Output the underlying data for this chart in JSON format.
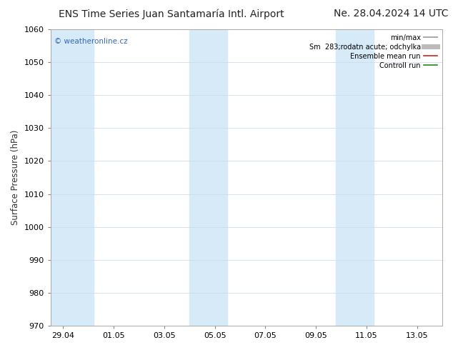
{
  "title_left": "ENS Time Series Juan Santamaría Intl. Airport",
  "title_right": "Ne. 28.04.2024 14 UTC",
  "ylabel": "Surface Pressure (hPa)",
  "ylim": [
    970,
    1060
  ],
  "yticks": [
    970,
    980,
    990,
    1000,
    1010,
    1020,
    1030,
    1040,
    1050,
    1060
  ],
  "xtick_labels": [
    "29.04",
    "01.05",
    "03.05",
    "05.05",
    "07.05",
    "09.05",
    "11.05",
    "13.05"
  ],
  "xtick_positions": [
    0,
    2,
    4,
    6,
    8,
    10,
    12,
    14
  ],
  "xlim": [
    -0.5,
    15.0
  ],
  "shaded_bands": [
    {
      "x_start": -0.5,
      "x_end": 1.2
    },
    {
      "x_start": 5.0,
      "x_end": 6.5
    },
    {
      "x_start": 10.8,
      "x_end": 12.3
    }
  ],
  "band_color": "#d6eaf8",
  "watermark_text": "© weatheronline.cz",
  "watermark_color": "#3366bb",
  "legend_entries": [
    {
      "label": "min/max",
      "color": "#aaaaaa",
      "linewidth": 1.5,
      "linestyle": "-"
    },
    {
      "label": "Sm  283;rodatn acute; odchylka",
      "color": "#bbbbbb",
      "linewidth": 5,
      "linestyle": "-"
    },
    {
      "label": "Ensemble mean run",
      "color": "#cc2222",
      "linewidth": 1.2,
      "linestyle": "-"
    },
    {
      "label": "Controll run",
      "color": "#228822",
      "linewidth": 1.2,
      "linestyle": "-"
    }
  ],
  "background_color": "#ffffff",
  "plot_bg_color": "#ffffff",
  "grid_color": "#ccddee",
  "title_fontsize": 10,
  "axis_label_fontsize": 8.5,
  "tick_fontsize": 8
}
